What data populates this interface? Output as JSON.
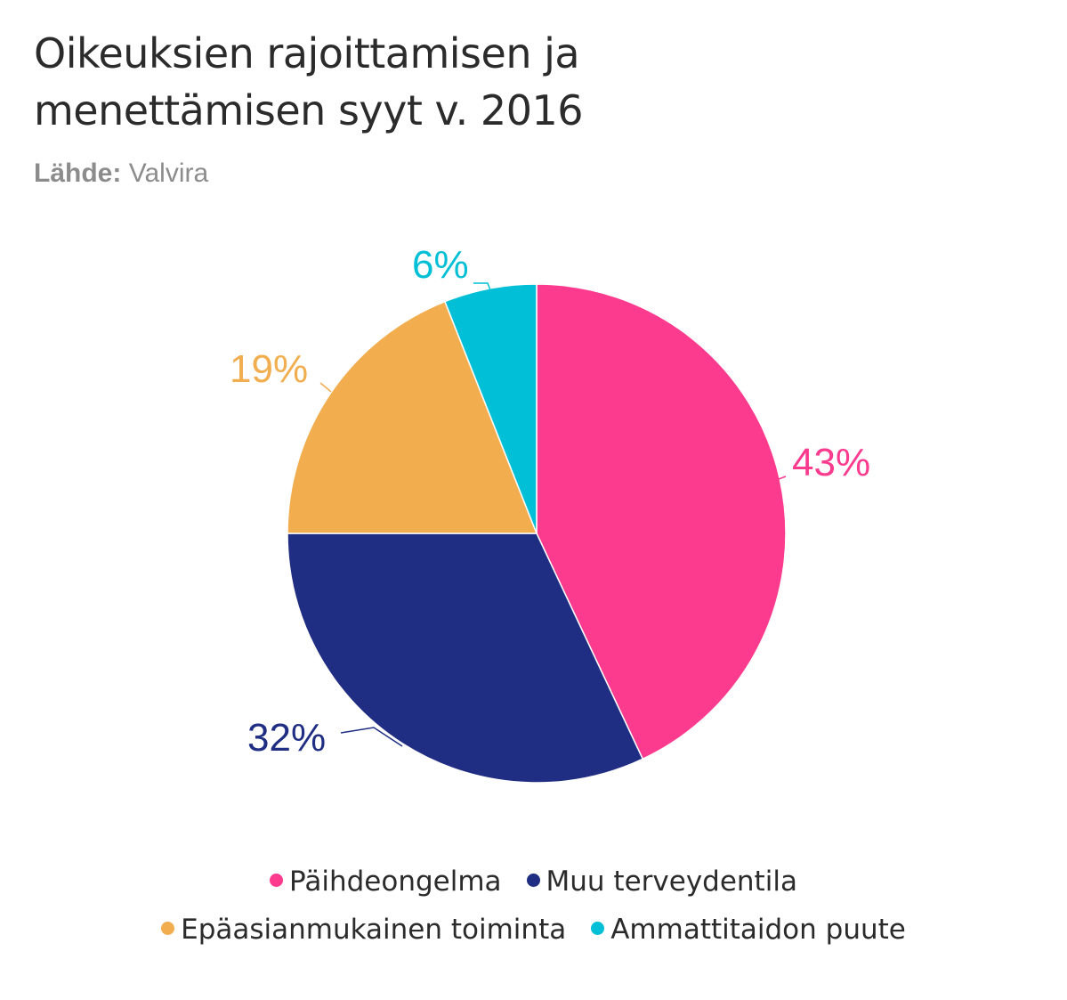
{
  "title_line1": "Oikeuksien rajoittamisen ja",
  "title_line2": "menettämisen syyt v. 2016",
  "source_label": "Lähde:",
  "source_value": "Valvira",
  "chart_data": {
    "type": "pie",
    "title": "Oikeuksien rajoittamisen ja menettämisen syyt v. 2016",
    "source": "Lähde: Valvira",
    "start_angle_deg": 0,
    "direction": "clockwise",
    "legend_position": "bottom",
    "slices": [
      {
        "name": "Päihdeongelma",
        "value": 43,
        "label": "43%",
        "color": "#fc3a8e"
      },
      {
        "name": "Muu terveydentila",
        "value": 32,
        "label": "32%",
        "color": "#1f2d83"
      },
      {
        "name": "Epäasianmukainen toiminta",
        "value": 19,
        "label": "19%",
        "color": "#f2ad4f"
      },
      {
        "name": "Ammattitaidon puute",
        "value": 6,
        "label": "6%",
        "color": "#00bfd6"
      }
    ]
  }
}
